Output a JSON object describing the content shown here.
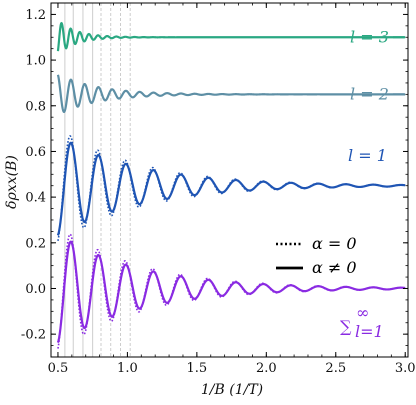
{
  "chart_data": {
    "type": "line",
    "xlabel": "1/B (1/T)",
    "ylabel": "δρxx(B)",
    "xlim": [
      0.45,
      3.02
    ],
    "ylim": [
      -0.3,
      1.25
    ],
    "xticks": [
      0.5,
      1.0,
      1.5,
      2.0,
      2.5,
      3.0
    ],
    "xtick_labels": [
      "0.5",
      "1.0",
      "1.5",
      "2.0",
      "2.5",
      "3.0"
    ],
    "yticks": [
      -0.2,
      0.0,
      0.2,
      0.4,
      0.6,
      0.8,
      1.0,
      1.2
    ],
    "ytick_labels": [
      "-0.2",
      "0.0",
      "0.2",
      "0.4",
      "0.6",
      "0.8",
      "1.0",
      "1.2"
    ],
    "vlines": [
      0.55,
      0.61,
      0.68,
      0.75,
      0.81,
      0.88,
      0.95,
      1.02
    ],
    "legend": [
      {
        "label": "α = 0",
        "style": "dotted"
      },
      {
        "label": "α ≠ 0",
        "style": "solid"
      }
    ],
    "legend_position": "right",
    "series": [
      {
        "name": "l = 3",
        "label_text": "l = 3",
        "color": "#2aa882",
        "offset": 1.1,
        "amplitude": 0.075,
        "x_range": [
          0.5,
          3.0
        ],
        "frequency": 15.2,
        "decay": 7.5,
        "dotted_pair": false
      },
      {
        "name": "l = 2",
        "label_text": "l = 2",
        "color": "#5e8fa5",
        "offset": 0.85,
        "amplitude": 0.09,
        "x_range": [
          0.5,
          3.0
        ],
        "frequency": 10.1,
        "decay": 3.6,
        "dotted_pair": false
      },
      {
        "name": "l = 1",
        "label_text": "l = 1",
        "color": "#1f55b4",
        "offset": 0.45,
        "amplitude": 0.22,
        "x_range": [
          0.5,
          3.0
        ],
        "frequency": 5.05,
        "decay": 1.7,
        "dotted_pair": true
      },
      {
        "name": "∑l=1∞",
        "label_text": "∑",
        "label_sub": "l=1",
        "label_sup": "∞",
        "color": "#8a2be2",
        "offset": 0.0,
        "amplitude": 0.24,
        "x_range": [
          0.5,
          3.0
        ],
        "frequency": 5.05,
        "decay": 1.7,
        "dotted_pair": true
      }
    ]
  }
}
